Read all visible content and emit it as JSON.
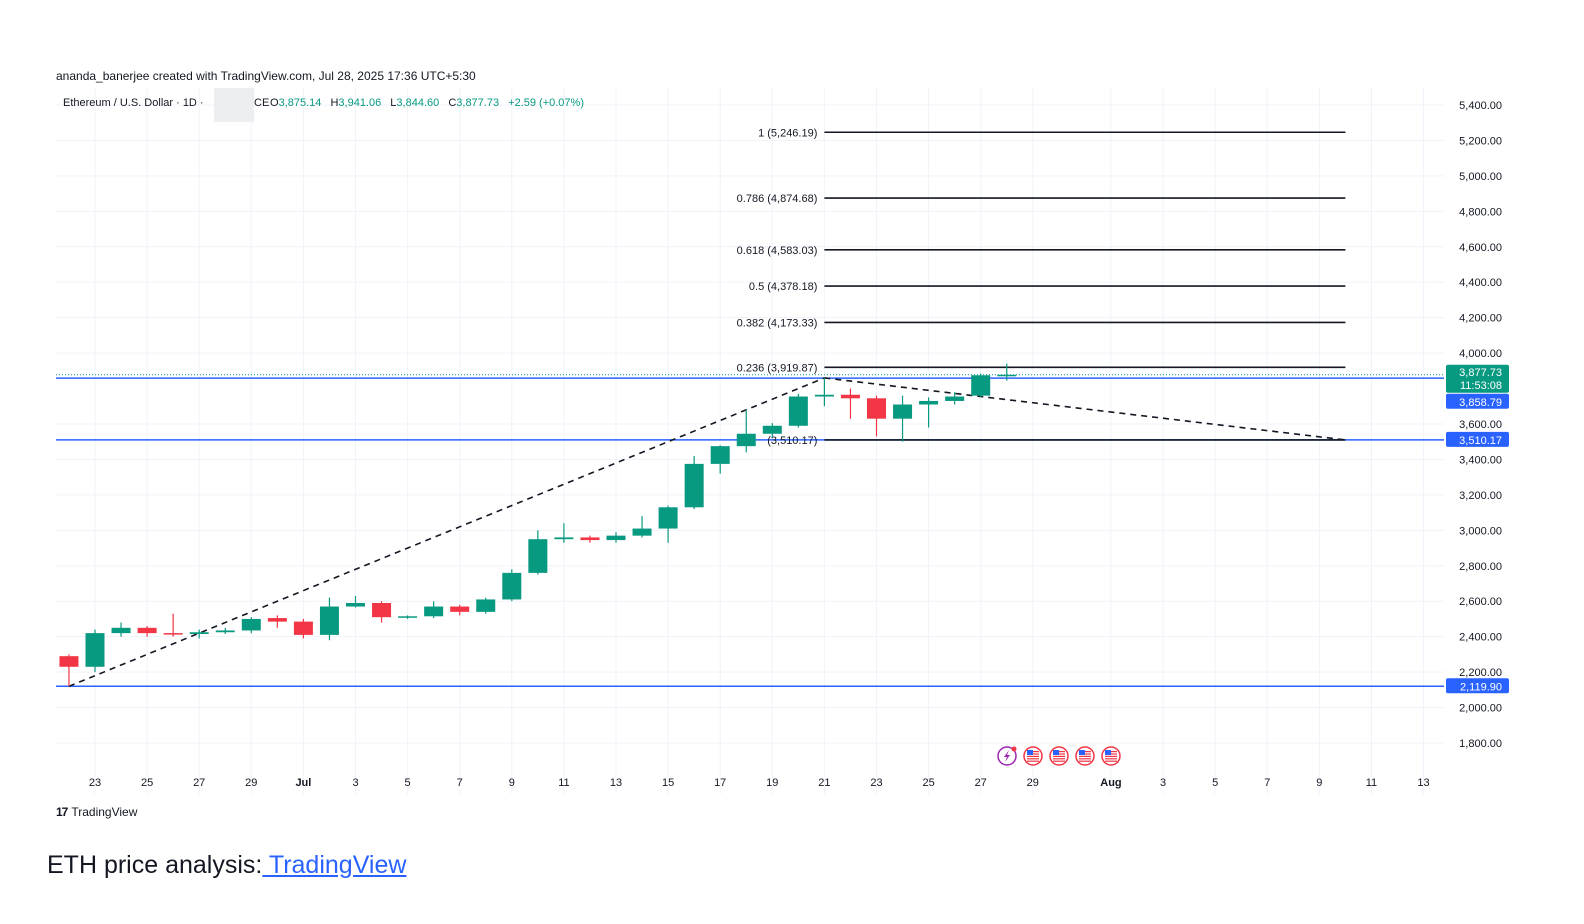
{
  "credit": "ananda_banerjee created with TradingView.com, Jul 28, 2025 17:36 UTC+5:30",
  "legend": {
    "symbol": "Ethereum / U.S. Dollar · 1D ·",
    "exchange_fragment": "CE",
    "open_label": "O",
    "open": "3,875.14",
    "high_label": "H",
    "high": "3,941.06",
    "low_label": "L",
    "low": "3,844.60",
    "close_label": "C",
    "close": "3,877.73",
    "change": "+2.59 (+0.07%)"
  },
  "logo": {
    "text": "TradingView",
    "icon": "tradingview-logo-icon"
  },
  "caption": {
    "prefix": "ETH price analysis:",
    "link": " TradingView"
  },
  "colors": {
    "up": "#089981",
    "down": "#f23645",
    "level_line": "#2962ff",
    "fib_line": "#131722",
    "grid": "#f0f3fa",
    "link": "#2962ff"
  },
  "chart_data": {
    "type": "candlestick",
    "title": "Ethereum / U.S. Dollar · 1D",
    "y_axis_ticks": [
      1800,
      2000,
      2200,
      2400,
      2600,
      2800,
      3000,
      3200,
      3400,
      3600,
      4000,
      4200,
      4400,
      4600,
      4800,
      5000,
      5200,
      5400
    ],
    "y_tick_labels": [
      "1,800.00",
      "2,000.00",
      "2,200.00",
      "2,400.00",
      "2,600.00",
      "2,800.00",
      "3,000.00",
      "3,200.00",
      "3,400.00",
      "3,600.00",
      "4,000.00",
      "4,200.00",
      "4,400.00",
      "4,600.00",
      "4,800.00",
      "5,000.00",
      "5,200.00",
      "5,400.00"
    ],
    "ylim": [
      1660,
      5530
    ],
    "x_axis_ticks": [
      {
        "date": "2025-06-23",
        "label": "23"
      },
      {
        "date": "2025-06-25",
        "label": "25"
      },
      {
        "date": "2025-06-27",
        "label": "27"
      },
      {
        "date": "2025-06-29",
        "label": "29"
      },
      {
        "date": "2025-07-01",
        "label": "Jul",
        "bold": true
      },
      {
        "date": "2025-07-03",
        "label": "3"
      },
      {
        "date": "2025-07-05",
        "label": "5"
      },
      {
        "date": "2025-07-07",
        "label": "7"
      },
      {
        "date": "2025-07-09",
        "label": "9"
      },
      {
        "date": "2025-07-11",
        "label": "11"
      },
      {
        "date": "2025-07-13",
        "label": "13"
      },
      {
        "date": "2025-07-15",
        "label": "15"
      },
      {
        "date": "2025-07-17",
        "label": "17"
      },
      {
        "date": "2025-07-19",
        "label": "19"
      },
      {
        "date": "2025-07-21",
        "label": "21"
      },
      {
        "date": "2025-07-23",
        "label": "23"
      },
      {
        "date": "2025-07-25",
        "label": "25"
      },
      {
        "date": "2025-07-27",
        "label": "27"
      },
      {
        "date": "2025-07-29",
        "label": "29"
      },
      {
        "date": "2025-08-01",
        "label": "Aug",
        "bold": true
      },
      {
        "date": "2025-08-03",
        "label": "3"
      },
      {
        "date": "2025-08-05",
        "label": "5"
      },
      {
        "date": "2025-08-07",
        "label": "7"
      },
      {
        "date": "2025-08-09",
        "label": "9"
      },
      {
        "date": "2025-08-11",
        "label": "11"
      },
      {
        "date": "2025-08-13",
        "label": "13"
      }
    ],
    "xlim": [
      "2025-06-21",
      "2025-08-15"
    ],
    "candles": [
      {
        "date": "2025-06-22",
        "o": 2290,
        "h": 2300,
        "l": 2120,
        "c": 2230
      },
      {
        "date": "2025-06-23",
        "o": 2230,
        "h": 2440,
        "l": 2200,
        "c": 2420
      },
      {
        "date": "2025-06-24",
        "o": 2420,
        "h": 2480,
        "l": 2400,
        "c": 2450
      },
      {
        "date": "2025-06-25",
        "o": 2450,
        "h": 2460,
        "l": 2400,
        "c": 2420
      },
      {
        "date": "2025-06-26",
        "o": 2420,
        "h": 2530,
        "l": 2400,
        "c": 2415
      },
      {
        "date": "2025-06-27",
        "o": 2415,
        "h": 2440,
        "l": 2390,
        "c": 2425
      },
      {
        "date": "2025-06-28",
        "o": 2425,
        "h": 2450,
        "l": 2415,
        "c": 2435
      },
      {
        "date": "2025-06-29",
        "o": 2435,
        "h": 2510,
        "l": 2420,
        "c": 2500
      },
      {
        "date": "2025-06-30",
        "o": 2505,
        "h": 2520,
        "l": 2450,
        "c": 2485
      },
      {
        "date": "2025-07-01",
        "o": 2485,
        "h": 2500,
        "l": 2390,
        "c": 2410
      },
      {
        "date": "2025-07-02",
        "o": 2410,
        "h": 2620,
        "l": 2380,
        "c": 2570
      },
      {
        "date": "2025-07-03",
        "o": 2570,
        "h": 2630,
        "l": 2565,
        "c": 2590
      },
      {
        "date": "2025-07-04",
        "o": 2590,
        "h": 2600,
        "l": 2480,
        "c": 2510
      },
      {
        "date": "2025-07-05",
        "o": 2510,
        "h": 2520,
        "l": 2500,
        "c": 2515
      },
      {
        "date": "2025-07-06",
        "o": 2515,
        "h": 2600,
        "l": 2505,
        "c": 2570
      },
      {
        "date": "2025-07-07",
        "o": 2570,
        "h": 2580,
        "l": 2520,
        "c": 2540
      },
      {
        "date": "2025-07-08",
        "o": 2540,
        "h": 2620,
        "l": 2530,
        "c": 2610
      },
      {
        "date": "2025-07-09",
        "o": 2610,
        "h": 2780,
        "l": 2600,
        "c": 2760
      },
      {
        "date": "2025-07-10",
        "o": 2760,
        "h": 3000,
        "l": 2750,
        "c": 2950
      },
      {
        "date": "2025-07-11",
        "o": 2950,
        "h": 3040,
        "l": 2930,
        "c": 2960
      },
      {
        "date": "2025-07-12",
        "o": 2960,
        "h": 2970,
        "l": 2930,
        "c": 2945
      },
      {
        "date": "2025-07-13",
        "o": 2945,
        "h": 2990,
        "l": 2930,
        "c": 2970
      },
      {
        "date": "2025-07-14",
        "o": 2970,
        "h": 3080,
        "l": 2960,
        "c": 3010
      },
      {
        "date": "2025-07-15",
        "o": 3010,
        "h": 3140,
        "l": 2930,
        "c": 3130
      },
      {
        "date": "2025-07-16",
        "o": 3130,
        "h": 3420,
        "l": 3120,
        "c": 3375
      },
      {
        "date": "2025-07-17",
        "o": 3375,
        "h": 3480,
        "l": 3320,
        "c": 3475
      },
      {
        "date": "2025-07-18",
        "o": 3475,
        "h": 3680,
        "l": 3440,
        "c": 3545
      },
      {
        "date": "2025-07-19",
        "o": 3545,
        "h": 3605,
        "l": 3525,
        "c": 3590
      },
      {
        "date": "2025-07-20",
        "o": 3590,
        "h": 3770,
        "l": 3580,
        "c": 3755
      },
      {
        "date": "2025-07-21",
        "o": 3755,
        "h": 3860,
        "l": 3700,
        "c": 3765
      },
      {
        "date": "2025-07-22",
        "o": 3765,
        "h": 3800,
        "l": 3630,
        "c": 3745
      },
      {
        "date": "2025-07-23",
        "o": 3745,
        "h": 3760,
        "l": 3530,
        "c": 3630
      },
      {
        "date": "2025-07-24",
        "o": 3630,
        "h": 3760,
        "l": 3500,
        "c": 3710
      },
      {
        "date": "2025-07-25",
        "o": 3710,
        "h": 3750,
        "l": 3580,
        "c": 3730
      },
      {
        "date": "2025-07-26",
        "o": 3730,
        "h": 3780,
        "l": 3710,
        "c": 3755
      },
      {
        "date": "2025-07-27",
        "o": 3760,
        "h": 3885,
        "l": 3750,
        "c": 3875
      },
      {
        "date": "2025-07-28",
        "o": 3875.14,
        "h": 3941.06,
        "l": 3844.6,
        "c": 3877.73
      }
    ],
    "horizontal_levels": [
      3858.79,
      3510.17,
      2119.9
    ],
    "price_labels": [
      {
        "text": "3,877.73",
        "value": 3877.73,
        "color": "#089981"
      },
      {
        "text": "11:53:08",
        "value": 3877.73,
        "color": "#089981",
        "sub": true
      },
      {
        "text": "3,858.79",
        "value": 3858.79,
        "color": "#2962ff"
      },
      {
        "text": "3,510.17",
        "value": 3510.17,
        "color": "#2962ff"
      },
      {
        "text": "2,119.90",
        "value": 2119.9,
        "color": "#2962ff"
      }
    ],
    "fib_levels": [
      {
        "label": "1 (5,246.19)",
        "value": 5246.19
      },
      {
        "label": "0.786 (4,874.68)",
        "value": 4874.68
      },
      {
        "label": "0.618 (4,583.03)",
        "value": 4583.03
      },
      {
        "label": "0.5 (4,378.18)",
        "value": 4378.18
      },
      {
        "label": "0.382 (4,173.33)",
        "value": 4173.33
      },
      {
        "label": "0.236 (3,919.87)",
        "value": 3919.87
      },
      {
        "label": "(3,510.17)",
        "value": 3510.17
      }
    ],
    "fib_range": [
      "2025-07-21",
      "2025-08-10"
    ],
    "trend_lines": [
      {
        "from": {
          "date": "2025-06-22",
          "value": 2119.9
        },
        "to": {
          "date": "2025-07-21",
          "value": 3860
        }
      },
      {
        "from": {
          "date": "2025-07-21",
          "value": 3860
        },
        "to": {
          "date": "2025-08-10",
          "value": 3510.17
        }
      }
    ],
    "event_icons": [
      {
        "date": "2025-07-28",
        "icon": "lightning-event-icon"
      },
      {
        "date": "2025-07-29",
        "icon": "us-flag-event-icon"
      },
      {
        "date": "2025-07-30",
        "icon": "us-flag-event-icon"
      },
      {
        "date": "2025-07-31",
        "icon": "us-flag-event-icon"
      },
      {
        "date": "2025-08-01",
        "icon": "us-flag-event-icon"
      }
    ]
  }
}
